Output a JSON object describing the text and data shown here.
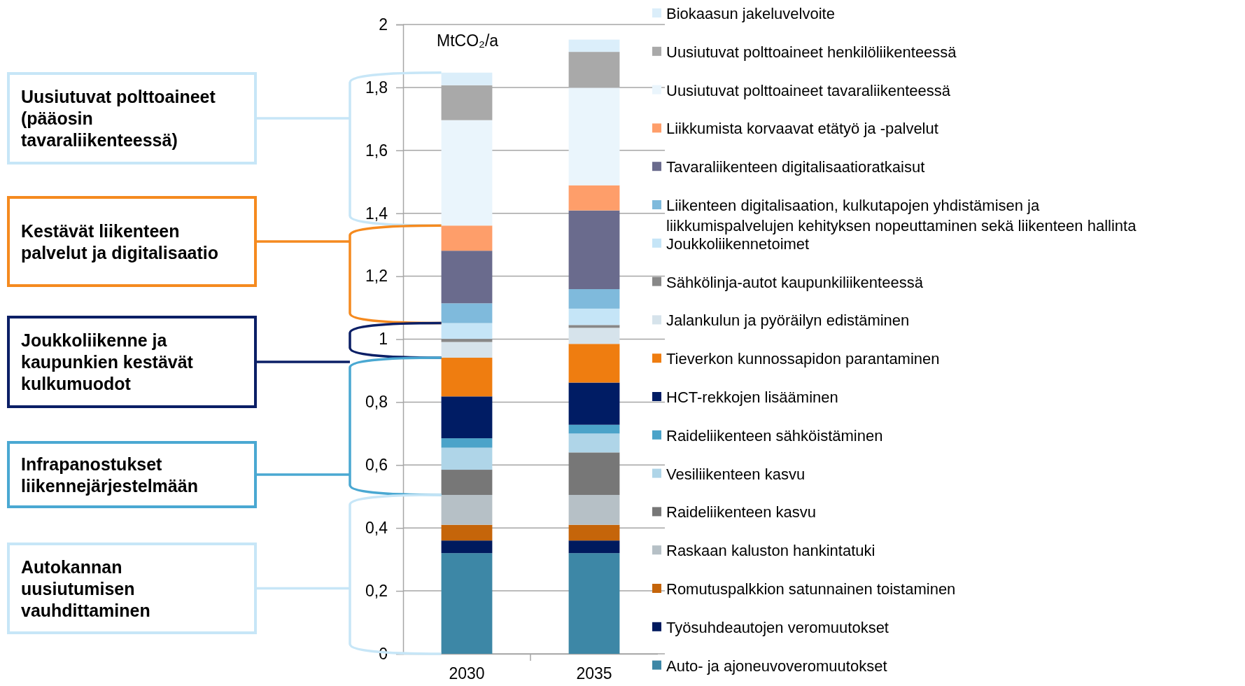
{
  "chart_data": {
    "type": "bar",
    "stacked": true,
    "ylabel": "MtCO₂/a",
    "categories": [
      "2030",
      "2035"
    ],
    "ylim": [
      0,
      2
    ],
    "yticks": [
      0,
      {
        "value": 0.2,
        "label": "0,2"
      },
      {
        "value": 0.4,
        "label": "0,4"
      },
      {
        "value": 0.6,
        "label": "0,6"
      },
      {
        "value": 0.8,
        "label": "0,8"
      },
      1,
      {
        "value": 1.2,
        "label": "1,2"
      },
      {
        "value": 1.4,
        "label": "1,4"
      },
      {
        "value": 1.6,
        "label": "1,6"
      },
      {
        "value": 1.8,
        "label": "1,8"
      },
      2
    ],
    "grid": "y",
    "legend": "right",
    "series": [
      {
        "name": "Auto- ja ajoneuvoveromuutokset",
        "color": "#3d87a6",
        "values": [
          0.32,
          0.32
        ]
      },
      {
        "name": "Työsuhdeautojen veromuutokset",
        "color": "#001a5e",
        "values": [
          0.04,
          0.04
        ]
      },
      {
        "name": "Romutuspalkkion satunnainen toistaminen",
        "color": "#c5650a",
        "values": [
          0.05,
          0.05
        ]
      },
      {
        "name": "Raskaan kaluston hankintatuki",
        "color": "#b6c0c6",
        "values": [
          0.095,
          0.095
        ]
      },
      {
        "name": "Raideliikenteen kasvu",
        "color": "#777777",
        "values": [
          0.08,
          0.135
        ]
      },
      {
        "name": "Vesiliikenteen kasvu",
        "color": "#afd5e8",
        "values": [
          0.07,
          0.06
        ]
      },
      {
        "name": "Raideliikenteen sähköistäminen",
        "color": "#4ba3c9",
        "values": [
          0.03,
          0.028
        ]
      },
      {
        "name": "HCT-rekkojen lisääminen",
        "color": "#001c64",
        "values": [
          0.133,
          0.134
        ]
      },
      {
        "name": "Tieverkon kunnossapidon parantaminen",
        "color": "#ef7d10",
        "values": [
          0.123,
          0.123
        ]
      },
      {
        "name": "Jalankulun ja pyöräilyn edistäminen",
        "color": "#d6e3eb",
        "values": [
          0.05,
          0.051
        ]
      },
      {
        "name": "Sähkölinja-autot kaupunkiliikenteessä",
        "color": "#888888",
        "values": [
          0.01,
          0.009
        ]
      },
      {
        "name": "Joukkoliikennetoimet",
        "color": "#c5e5f7",
        "values": [
          0.05,
          0.052
        ]
      },
      {
        "name": "Liikenteen digitalisaation, kulkutapojen yhdistämisen ja liikkumispalvelujen kehityksen nopeuttaminen sekä liikenteen hallinta",
        "color": "#7fbadc",
        "values": [
          0.063,
          0.062
        ]
      },
      {
        "name": "Tavaraliikenteen digitalisaatioratkaisut",
        "color": "#6a6b8d",
        "values": [
          0.167,
          0.25
        ]
      },
      {
        "name": "Liikkumista korvaavat etätyö ja -palvelut",
        "color": "#fe9e6a",
        "values": [
          0.08,
          0.08
        ]
      },
      {
        "name": "Uusiutuvat polttoaineet tavaraliikenteessä",
        "color": "#eaf5fc",
        "values": [
          0.335,
          0.31
        ]
      },
      {
        "name": "Uusiutuvat polttoaineet henkilöliikenteessä",
        "color": "#a9a9a9",
        "values": [
          0.111,
          0.114
        ]
      },
      {
        "name": "Biokaasun jakeluvelvoite",
        "color": "#dbeefa",
        "values": [
          0.04,
          0.039
        ]
      }
    ],
    "annotations": [
      "Uusiutuvat polttoaineet (pääosin tavaraliikenteessä)",
      "Kestävät liikenteen palvelut ja digitalisaatio",
      "Joukkoliikenne ja kaupunkien kestävät kulkumuodot",
      "Infrapanostukset liikennejärjestelmään",
      "Autokannan uusiutumisen vauhdittaminen"
    ]
  }
}
